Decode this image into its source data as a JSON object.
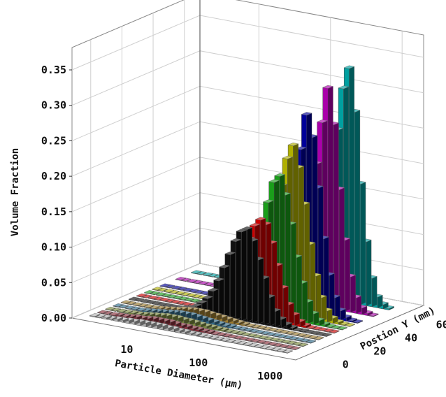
{
  "chart_data": {
    "type": "bar",
    "title": "",
    "zlabel": "Volume Fraction",
    "xlabel": "Particle Diameter (μm)",
    "ylabel": "Postion Y (mm)",
    "x_scale": "log",
    "x_ticks": [
      "10",
      "100",
      "1000"
    ],
    "y_ticks": [
      "0",
      "20",
      "40",
      "60"
    ],
    "z_ticks": [
      "0.00",
      "0.05",
      "0.10",
      "0.15",
      "0.20",
      "0.25",
      "0.30",
      "0.35"
    ],
    "zlim": [
      0,
      0.35
    ],
    "x_bins_um": [
      2.2,
      2.6,
      3.2,
      3.8,
      4.6,
      5.5,
      6.6,
      7.9,
      9.5,
      11.4,
      13.6,
      16.4,
      19.6,
      23.5,
      28.2,
      33.8,
      40.6,
      48.7,
      58.4,
      70.1,
      84.1,
      100.9,
      121.1,
      145.3,
      174.4,
      209.3,
      251.1,
      301.3,
      361.6,
      433.9,
      520.7,
      624.8,
      749.8,
      899.7,
      1079.7
    ],
    "grid": true,
    "series": [
      {
        "position_mm": -5,
        "color": "#b0b0b0",
        "values": [
          0.001,
          0.001,
          0.002,
          0.002,
          0.003,
          0.003,
          0.004,
          0.004,
          0.005,
          0.005,
          0.005,
          0.005,
          0.005,
          0.004,
          0.004,
          0.003,
          0.003,
          0.002,
          0.002,
          0.001,
          0.001,
          0.001,
          0.001,
          0,
          0,
          0,
          0,
          0,
          0,
          0,
          0,
          0,
          0,
          0,
          0
        ]
      },
      {
        "position_mm": 0,
        "color": "#8b2d3a",
        "values": [
          0,
          0.001,
          0.001,
          0.002,
          0.002,
          0.003,
          0.004,
          0.004,
          0.005,
          0.006,
          0.006,
          0.006,
          0.006,
          0.005,
          0.004,
          0.004,
          0.003,
          0.003,
          0.002,
          0.002,
          0.001,
          0.001,
          0.001,
          0,
          0,
          0,
          0,
          0,
          0,
          0,
          0,
          0,
          0,
          0,
          0
        ]
      },
      {
        "position_mm": 5,
        "color": "#7a8a3a",
        "values": [
          0,
          0,
          0.001,
          0.001,
          0.002,
          0.002,
          0.003,
          0.004,
          0.005,
          0.006,
          0.007,
          0.007,
          0.007,
          0.006,
          0.006,
          0.005,
          0.004,
          0.003,
          0.003,
          0.002,
          0.002,
          0.001,
          0.001,
          0.001,
          0,
          0,
          0,
          0,
          0,
          0,
          0,
          0,
          0,
          0,
          0
        ]
      },
      {
        "position_mm": 10,
        "color": "#2d6b8b",
        "values": [
          0,
          0,
          0,
          0.001,
          0.001,
          0.002,
          0.003,
          0.004,
          0.005,
          0.006,
          0.007,
          0.008,
          0.008,
          0.008,
          0.007,
          0.006,
          0.005,
          0.004,
          0.003,
          0.002,
          0.002,
          0.001,
          0.001,
          0.001,
          0,
          0,
          0,
          0,
          0,
          0,
          0,
          0,
          0,
          0,
          0
        ]
      },
      {
        "position_mm": 15,
        "color": "#9c7b2c",
        "values": [
          0,
          0,
          0,
          0,
          0.001,
          0.001,
          0.002,
          0.003,
          0.004,
          0.005,
          0.007,
          0.008,
          0.009,
          0.009,
          0.009,
          0.008,
          0.007,
          0.006,
          0.005,
          0.004,
          0.003,
          0.002,
          0.001,
          0.001,
          0.001,
          0,
          0,
          0,
          0,
          0,
          0,
          0,
          0,
          0,
          0
        ]
      },
      {
        "position_mm": 20,
        "color": "#111111",
        "values": [
          0,
          0,
          0,
          0,
          0,
          0,
          0,
          0,
          0.001,
          0.002,
          0.004,
          0.008,
          0.014,
          0.022,
          0.034,
          0.05,
          0.07,
          0.09,
          0.11,
          0.125,
          0.13,
          0.115,
          0.09,
          0.065,
          0.04,
          0.022,
          0.012,
          0.006,
          0.003,
          0.001,
          0.001,
          0,
          0,
          0,
          0
        ]
      },
      {
        "position_mm": 25,
        "color": "#cc0000",
        "values": [
          0,
          0,
          0,
          0,
          0,
          0,
          0,
          0,
          0,
          0,
          0.001,
          0.002,
          0.004,
          0.008,
          0.014,
          0.024,
          0.04,
          0.06,
          0.085,
          0.11,
          0.13,
          0.14,
          0.135,
          0.11,
          0.08,
          0.05,
          0.028,
          0.015,
          0.007,
          0.003,
          0.001,
          0,
          0,
          0,
          0
        ]
      },
      {
        "position_mm": 30,
        "color": "#1a9e1a",
        "values": [
          0,
          0,
          0,
          0,
          0,
          0,
          0,
          0,
          0,
          0,
          0,
          0,
          0.001,
          0.002,
          0.004,
          0.008,
          0.015,
          0.028,
          0.05,
          0.08,
          0.12,
          0.16,
          0.19,
          0.2,
          0.175,
          0.135,
          0.09,
          0.055,
          0.03,
          0.015,
          0.007,
          0.003,
          0.001,
          0,
          0
        ]
      },
      {
        "position_mm": 35,
        "color": "#b0b000",
        "values": [
          0,
          0,
          0,
          0,
          0,
          0,
          0,
          0,
          0,
          0,
          0,
          0,
          0,
          0,
          0.001,
          0.003,
          0.006,
          0.012,
          0.024,
          0.045,
          0.08,
          0.13,
          0.18,
          0.22,
          0.24,
          0.21,
          0.16,
          0.105,
          0.062,
          0.033,
          0.016,
          0.007,
          0.003,
          0.001,
          0
        ]
      },
      {
        "position_mm": 40,
        "color": "#000099",
        "values": [
          0,
          0,
          0,
          0,
          0,
          0,
          0,
          0,
          0,
          0,
          0,
          0,
          0,
          0,
          0,
          0,
          0.001,
          0.003,
          0.007,
          0.015,
          0.03,
          0.06,
          0.11,
          0.17,
          0.23,
          0.28,
          0.25,
          0.18,
          0.11,
          0.06,
          0.03,
          0.013,
          0.005,
          0.002,
          0.001
        ]
      },
      {
        "position_mm": 50,
        "color": "#aa00aa",
        "values": [
          0,
          0,
          0,
          0,
          0,
          0,
          0,
          0,
          0,
          0,
          0,
          0,
          0,
          0,
          0,
          0,
          0,
          0.001,
          0.003,
          0.007,
          0.016,
          0.035,
          0.07,
          0.13,
          0.2,
          0.26,
          0.31,
          0.26,
          0.17,
          0.1,
          0.05,
          0.022,
          0.009,
          0.003,
          0.001
        ]
      },
      {
        "position_mm": 60,
        "color": "#00a0a0",
        "values": [
          0,
          0,
          0,
          0,
          0,
          0,
          0,
          0,
          0,
          0,
          0,
          0,
          0,
          0,
          0,
          0,
          0,
          0,
          0.001,
          0.004,
          0.01,
          0.024,
          0.05,
          0.1,
          0.17,
          0.24,
          0.3,
          0.33,
          0.27,
          0.17,
          0.09,
          0.04,
          0.015,
          0.006,
          0.002
        ]
      }
    ]
  }
}
